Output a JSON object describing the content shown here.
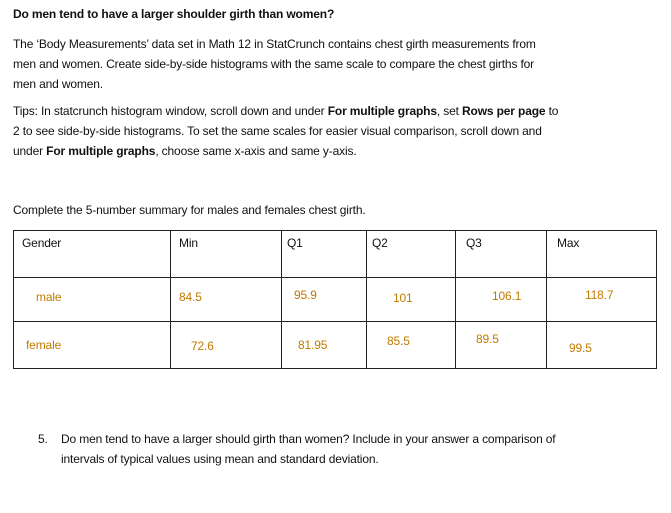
{
  "header": {
    "title": "Do men tend to have a larger shoulder girth than women?"
  },
  "intro": {
    "lines": [
      "The ‘Body Measurements’ data set in Math 12 in StatCrunch contains chest girth measurements from",
      "men and women.  Create side-by-side histograms with the same scale to compare the chest girths for",
      "men and women."
    ]
  },
  "tips": {
    "lines": [
      [
        {
          "text": "Tips: In statcrunch histogram window, scroll down and under ",
          "bold": false
        },
        {
          "text": "For multiple graphs",
          "bold": true
        },
        {
          "text": ", set ",
          "bold": false
        },
        {
          "text": "Rows per page",
          "bold": true
        },
        {
          "text": " to",
          "bold": false
        }
      ],
      [
        {
          "text": "2 to see side-by-side histograms.  To set the same scales for easier visual comparison, scroll down and",
          "bold": false
        }
      ],
      [
        {
          "text": "under ",
          "bold": false
        },
        {
          "text": "For multiple graphs",
          "bold": true
        },
        {
          "text": ", choose same x-axis and same y-axis.",
          "bold": false
        }
      ]
    ]
  },
  "instruction": "Complete the 5-number summary for males and females chest girth.",
  "table": {
    "header": [
      "Gender",
      "Min",
      "Q1",
      "Q2",
      "Q3",
      "Max"
    ],
    "rows": [
      [
        "male",
        "84.5",
        "95.9",
        "101",
        "106.1",
        "118.7"
      ],
      [
        "female",
        "72.6",
        "81.95",
        "85.5",
        "89.5",
        "99.5"
      ]
    ]
  },
  "question": {
    "number": "5.",
    "lines": [
      "Do men tend to have a larger should girth than women?  Include in your answer a comparison of",
      "intervals of typical values using mean and standard deviation."
    ]
  }
}
